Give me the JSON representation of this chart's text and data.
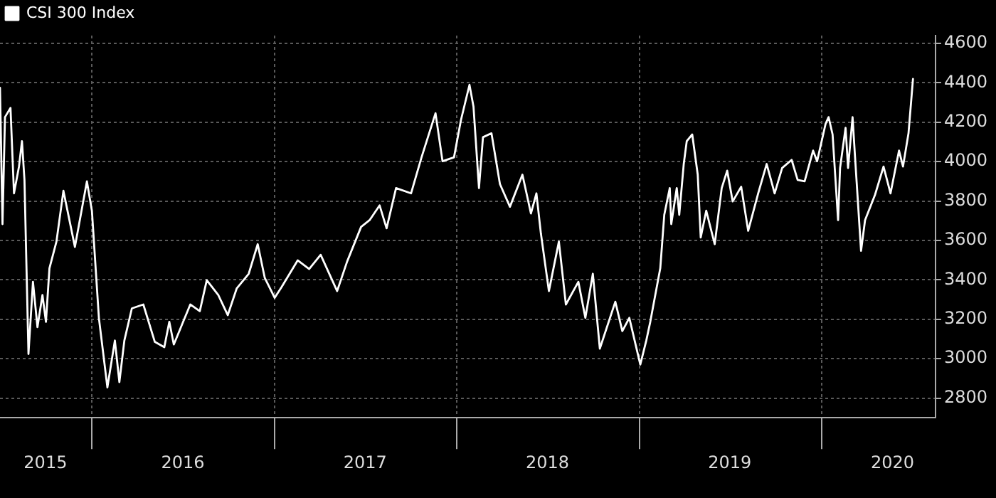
{
  "chart_data": {
    "type": "line",
    "x": [
      "2015-07-01",
      "2015-07-06",
      "2015-07-11",
      "2015-07-22",
      "2015-07-29",
      "2015-08-08",
      "2015-08-14",
      "2015-08-19",
      "2015-08-27",
      "2015-09-05",
      "2015-09-14",
      "2015-09-24",
      "2015-10-01",
      "2015-10-08",
      "2015-10-22",
      "2015-11-05",
      "2015-11-28",
      "2015-12-22",
      "2016-01-01",
      "2016-01-15",
      "2016-02-01",
      "2016-02-16",
      "2016-02-25",
      "2016-03-06",
      "2016-03-21",
      "2016-04-13",
      "2016-05-06",
      "2016-05-25",
      "2016-06-04",
      "2016-06-13",
      "2016-07-16",
      "2016-08-04",
      "2016-08-18",
      "2016-09-10",
      "2016-09-29",
      "2016-10-17",
      "2016-11-10",
      "2016-11-28",
      "2016-12-12",
      "2017-01-01",
      "2017-01-15",
      "2017-02-16",
      "2017-03-11",
      "2017-04-03",
      "2017-05-06",
      "2017-05-26",
      "2017-06-23",
      "2017-07-10",
      "2017-07-30",
      "2017-08-13",
      "2017-09-01",
      "2017-10-01",
      "2017-10-22",
      "2017-11-19",
      "2017-12-03",
      "2017-12-26",
      "2018-01-09",
      "2018-01-26",
      "2018-02-03",
      "2018-02-14",
      "2018-02-22",
      "2018-03-11",
      "2018-03-28",
      "2018-04-17",
      "2018-05-12",
      "2018-05-29",
      "2018-06-09",
      "2018-06-18",
      "2018-07-04",
      "2018-07-24",
      "2018-08-07",
      "2018-09-01",
      "2018-09-15",
      "2018-09-30",
      "2018-10-14",
      "2018-11-14",
      "2018-11-28",
      "2018-12-12",
      "2019-01-03",
      "2019-01-15",
      "2019-01-23",
      "2019-02-12",
      "2019-02-20",
      "2019-03-03",
      "2019-03-06",
      "2019-03-17",
      "2019-03-22",
      "2019-03-31",
      "2019-04-06",
      "2019-04-17",
      "2019-04-28",
      "2019-05-04",
      "2019-05-15",
      "2019-06-01",
      "2019-06-15",
      "2019-06-26",
      "2019-07-07",
      "2019-07-24",
      "2019-08-07",
      "2019-08-27",
      "2019-09-13",
      "2019-09-29",
      "2019-10-14",
      "2019-11-02",
      "2019-11-14",
      "2019-11-28",
      "2019-12-15",
      "2019-12-23",
      "2020-01-09",
      "2020-01-15",
      "2020-01-23",
      "2020-02-03",
      "2020-02-07",
      "2020-02-18",
      "2020-02-23",
      "2020-03-03",
      "2020-03-08",
      "2020-03-20",
      "2020-03-28",
      "2020-04-17",
      "2020-05-04",
      "2020-05-18",
      "2020-06-04",
      "2020-06-12",
      "2020-06-23",
      "2020-07-02"
    ],
    "series": [
      {
        "name": "CSI 300 Index",
        "color": "#ffffff",
        "values": [
          4375,
          3683,
          4226,
          4273,
          3839,
          3975,
          4104,
          3907,
          3024,
          3390,
          3160,
          3323,
          3187,
          3459,
          3594,
          3852,
          3567,
          3900,
          3751,
          3207,
          2854,
          3092,
          2881,
          3092,
          3255,
          3275,
          3085,
          3058,
          3187,
          3072,
          3275,
          3241,
          3398,
          3323,
          3221,
          3357,
          3431,
          3581,
          3411,
          3309,
          3364,
          3499,
          3455,
          3527,
          3343,
          3493,
          3669,
          3703,
          3778,
          3662,
          3866,
          3839,
          4022,
          4246,
          4002,
          4022,
          4212,
          4390,
          4280,
          3866,
          4124,
          4144,
          3886,
          3771,
          3934,
          3737,
          3839,
          3635,
          3343,
          3594,
          3275,
          3390,
          3207,
          3431,
          3051,
          3289,
          3140,
          3207,
          2970,
          3092,
          3187,
          3459,
          3730,
          3866,
          3683,
          3866,
          3730,
          3988,
          4104,
          4138,
          3934,
          3615,
          3751,
          3581,
          3866,
          3954,
          3798,
          3873,
          3649,
          3839,
          3988,
          3839,
          3968,
          4009,
          3907,
          3900,
          4056,
          4002,
          4192,
          4226,
          4138,
          3703,
          3968,
          4172,
          3968,
          4226,
          4022,
          3547,
          3703,
          3832,
          3975,
          3839,
          4056,
          3975,
          4144,
          4420
        ]
      }
    ],
    "xlim": [
      "2015-07-01",
      "2020-08-16"
    ],
    "xticks": [
      {
        "value": "2016-01-01",
        "label": null
      },
      {
        "value": "2017-01-01",
        "label": null
      },
      {
        "value": "2018-01-01",
        "label": null
      },
      {
        "value": "2019-01-01",
        "label": null
      },
      {
        "value": "2020-01-01",
        "label": null
      },
      {
        "value": "2015-09-30",
        "label": "2015"
      },
      {
        "value": "2016-07-01",
        "label": "2016"
      },
      {
        "value": "2017-07-01",
        "label": "2017"
      },
      {
        "value": "2018-07-01",
        "label": "2018"
      },
      {
        "value": "2019-07-01",
        "label": "2019"
      },
      {
        "value": "2020-05-22",
        "label": "2020"
      }
    ],
    "ylim": [
      2700,
      4640
    ],
    "yticks": [
      2800,
      3000,
      3200,
      3400,
      3600,
      3800,
      4000,
      4200,
      4400,
      4600
    ],
    "grid": true,
    "legend": "top left",
    "line_style": "solid",
    "marker": "none"
  }
}
